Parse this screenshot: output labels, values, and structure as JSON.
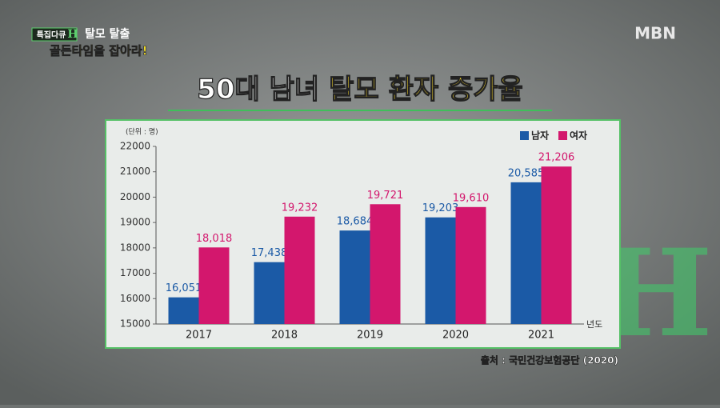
{
  "broadcast": {
    "program": "특집다큐",
    "program_mark": "H",
    "episode": "탈모 탈출",
    "subtitle": "골든타임을 잡아라!",
    "channel": "MBN"
  },
  "chart_data": {
    "type": "bar",
    "title": "50대 남녀",
    "title_highlight": "탈모 환자 증가율",
    "unit_label": "(단위 : 명)",
    "xlabel": "년도",
    "categories": [
      "2017",
      "2018",
      "2019",
      "2020",
      "2021"
    ],
    "series": [
      {
        "name": "남자",
        "color": "#1b5aa6",
        "values": [
          16051,
          17438,
          18684,
          19203,
          20585
        ],
        "value_labels": [
          "16,051",
          "17,438",
          "18,684",
          "19,203",
          "20,585"
        ]
      },
      {
        "name": "여자",
        "color": "#d3176d",
        "values": [
          18018,
          19232,
          19721,
          19610,
          21206
        ],
        "value_labels": [
          "18,018",
          "19,232",
          "19,721",
          "19,610",
          "21,206"
        ]
      }
    ],
    "ylim": [
      15000,
      22000
    ],
    "yticks": [
      15000,
      16000,
      17000,
      18000,
      19000,
      20000,
      21000,
      22000
    ],
    "grid": false,
    "legend": "upper right",
    "source": "출처 : 국민건강보험공단 (2020)"
  }
}
